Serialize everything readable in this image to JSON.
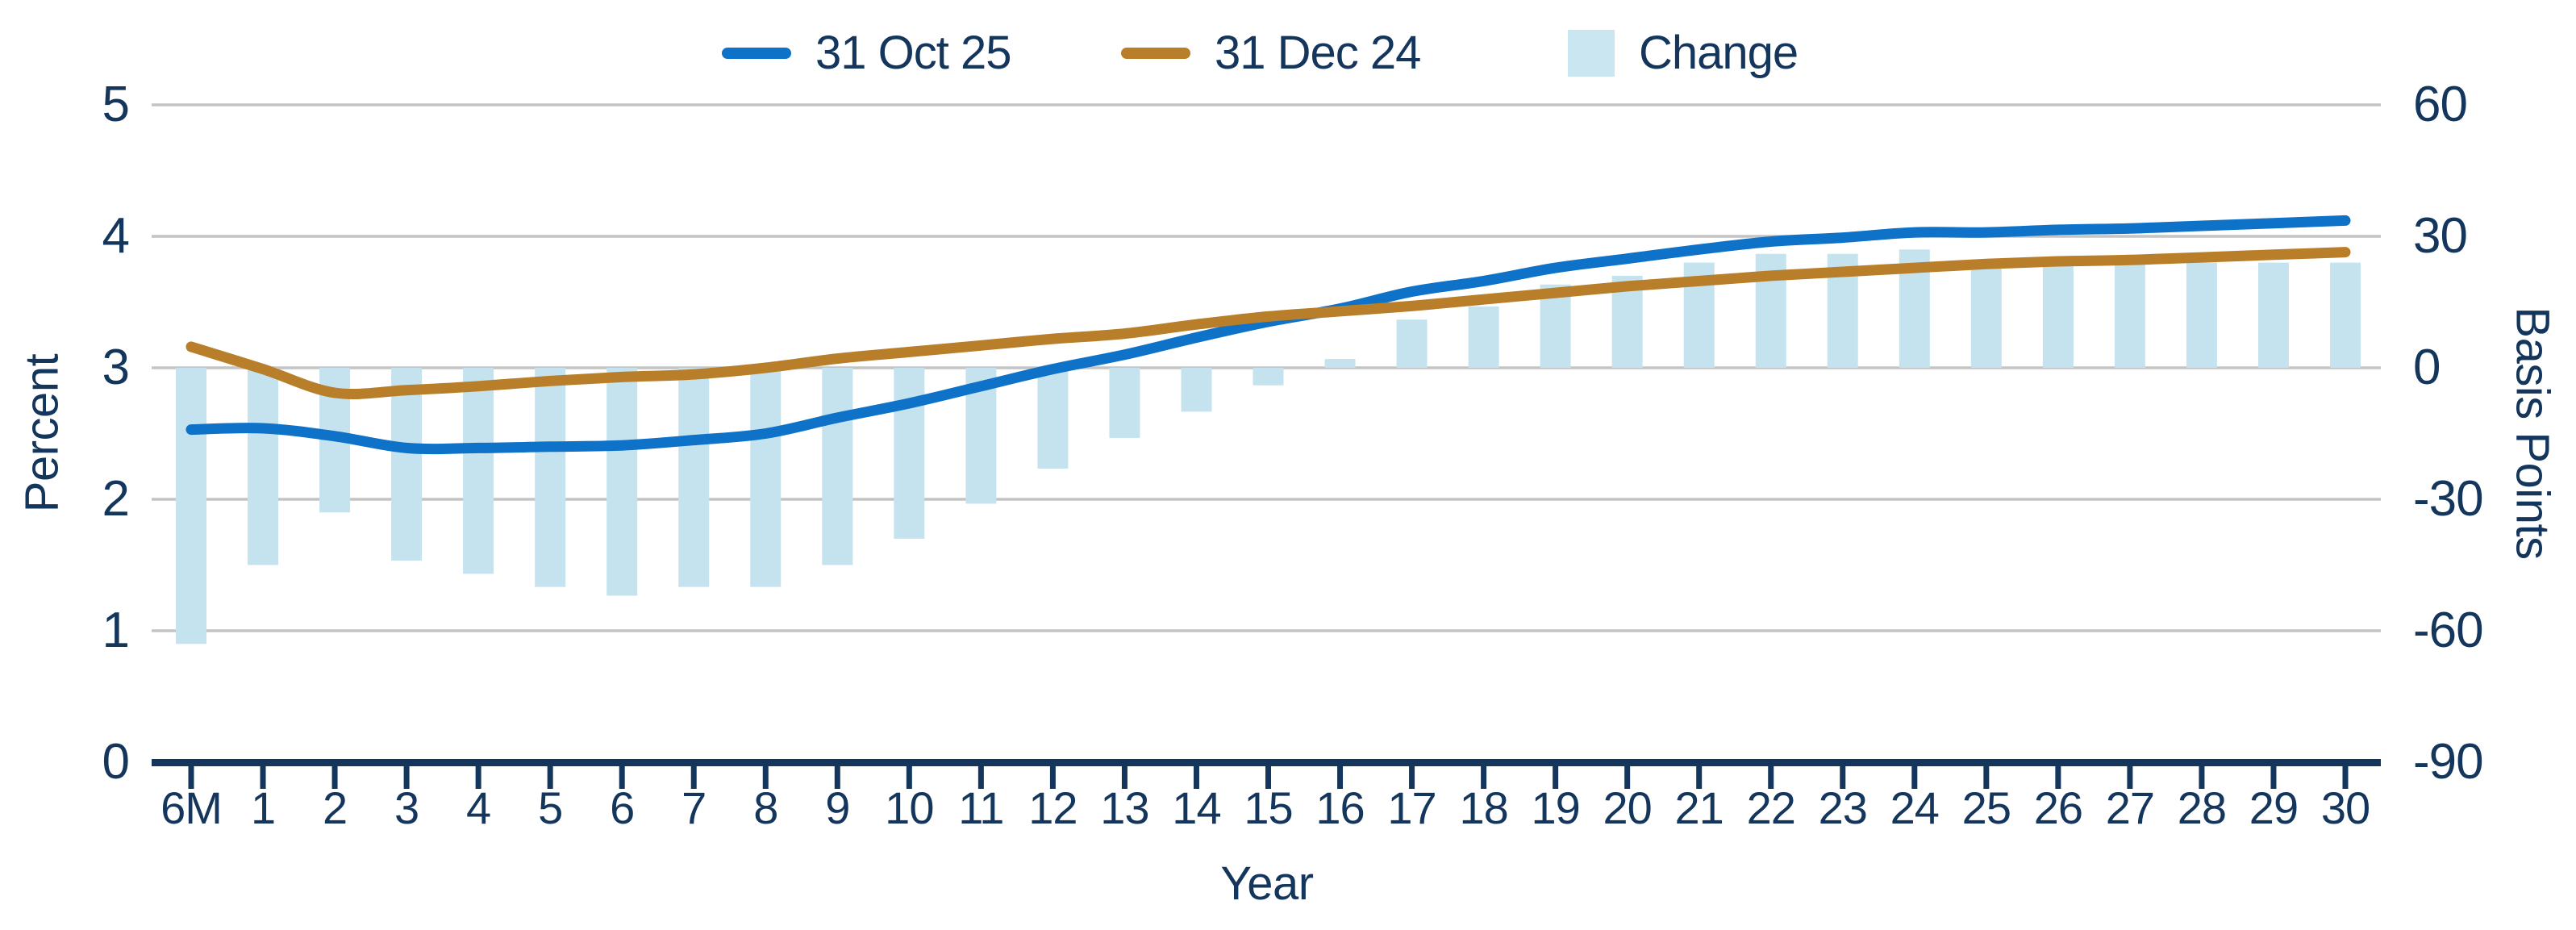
{
  "chart_data": {
    "type": "line+bar",
    "title": "",
    "legend_position": "top-center",
    "grid": true,
    "x": {
      "label": "Year",
      "categories": [
        "6M",
        "1",
        "2",
        "3",
        "4",
        "5",
        "6",
        "7",
        "8",
        "9",
        "10",
        "11",
        "12",
        "13",
        "14",
        "15",
        "16",
        "17",
        "18",
        "19",
        "20",
        "21",
        "22",
        "23",
        "24",
        "25",
        "26",
        "27",
        "28",
        "29",
        "30"
      ]
    },
    "y_left": {
      "label": "Percent",
      "ticks": [
        5,
        4,
        3,
        2,
        1,
        0
      ],
      "min": 0,
      "max": 5
    },
    "y_right": {
      "label": "Basis Points",
      "ticks": [
        60,
        30,
        0,
        -30,
        -60,
        -90
      ],
      "min": -90,
      "max": 60
    },
    "series": [
      {
        "name": "31 Oct 25",
        "type": "line",
        "axis": "left",
        "color": "#0e72c8",
        "values": [
          2.53,
          2.54,
          2.48,
          2.39,
          2.39,
          2.4,
          2.41,
          2.45,
          2.5,
          2.62,
          2.73,
          2.86,
          2.99,
          3.1,
          3.23,
          3.35,
          3.45,
          3.58,
          3.66,
          3.76,
          3.83,
          3.9,
          3.96,
          3.99,
          4.03,
          4.03,
          4.05,
          4.06,
          4.08,
          4.1,
          4.12
        ]
      },
      {
        "name": "31 Dec 24",
        "type": "line",
        "axis": "left",
        "color": "#b87e29",
        "values": [
          3.16,
          2.99,
          2.81,
          2.83,
          2.86,
          2.9,
          2.93,
          2.95,
          3.0,
          3.07,
          3.12,
          3.17,
          3.22,
          3.26,
          3.33,
          3.39,
          3.43,
          3.47,
          3.52,
          3.57,
          3.62,
          3.66,
          3.7,
          3.73,
          3.76,
          3.79,
          3.81,
          3.82,
          3.84,
          3.86,
          3.88
        ]
      },
      {
        "name": "Change",
        "type": "bar",
        "axis": "right",
        "color": "#c4e3ef",
        "values": [
          -63,
          -45,
          -33,
          -44,
          -47,
          -50,
          -52,
          -50,
          -50,
          -45,
          -39,
          -31,
          -23,
          -16,
          -10,
          -4,
          2,
          11,
          14,
          19,
          21,
          24,
          26,
          26,
          27,
          24,
          24,
          24,
          24,
          24,
          24
        ]
      }
    ]
  },
  "legend": {
    "swatch_colors": {
      "oct": "#0e72c8",
      "dec": "#b87e29",
      "change": "#c9e6f1"
    }
  },
  "colors": {
    "text_navy": "#14365c",
    "gridline": "#c4c4c4",
    "axis_line": "#14365c",
    "background": "#ffffff"
  }
}
